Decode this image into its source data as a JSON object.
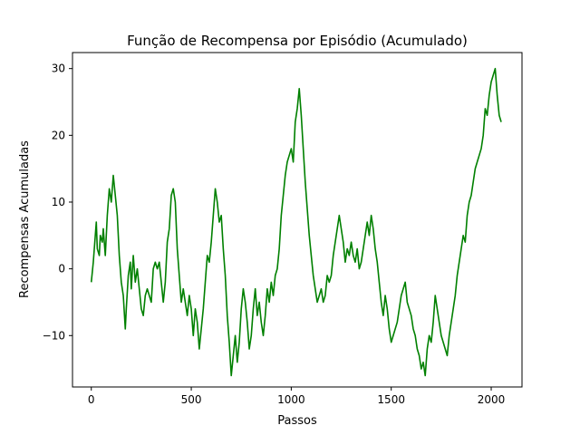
{
  "chart_data": {
    "type": "line",
    "title": "Função de Recompensa por Episódio (Acumulado)",
    "xlabel": "Passos",
    "ylabel": "Recompensas Acumuladas",
    "xlim": [
      -94,
      2154
    ],
    "ylim": [
      -17.7,
      32.4
    ],
    "xticks": [
      0,
      500,
      1000,
      1500,
      2000
    ],
    "yticks": [
      -10,
      0,
      10,
      20,
      30
    ],
    "xtick_labels": [
      "0",
      "500",
      "1000",
      "1500",
      "2000"
    ],
    "ytick_labels": [
      "−10",
      "0",
      "10",
      "20",
      "30"
    ],
    "grid": false,
    "legend": "none",
    "series": [
      {
        "color": "#008000",
        "points": [
          [
            0,
            -2
          ],
          [
            10,
            1
          ],
          [
            20,
            5
          ],
          [
            25,
            7
          ],
          [
            30,
            3
          ],
          [
            40,
            2
          ],
          [
            45,
            5
          ],
          [
            55,
            4
          ],
          [
            60,
            6
          ],
          [
            70,
            2
          ],
          [
            80,
            8
          ],
          [
            90,
            12
          ],
          [
            100,
            10
          ],
          [
            110,
            14
          ],
          [
            120,
            11
          ],
          [
            130,
            8
          ],
          [
            140,
            2
          ],
          [
            150,
            -2
          ],
          [
            160,
            -4
          ],
          [
            170,
            -9
          ],
          [
            175,
            -6
          ],
          [
            185,
            -1
          ],
          [
            195,
            1
          ],
          [
            200,
            -3
          ],
          [
            210,
            2
          ],
          [
            220,
            -2
          ],
          [
            230,
            0
          ],
          [
            240,
            -3
          ],
          [
            250,
            -6
          ],
          [
            260,
            -7
          ],
          [
            270,
            -4
          ],
          [
            280,
            -3
          ],
          [
            300,
            -5
          ],
          [
            310,
            0
          ],
          [
            320,
            1
          ],
          [
            330,
            0
          ],
          [
            340,
            1
          ],
          [
            360,
            -5
          ],
          [
            370,
            -2
          ],
          [
            380,
            4
          ],
          [
            390,
            6
          ],
          [
            400,
            11
          ],
          [
            410,
            12
          ],
          [
            420,
            10
          ],
          [
            430,
            3
          ],
          [
            440,
            -1
          ],
          [
            450,
            -5
          ],
          [
            460,
            -3
          ],
          [
            480,
            -7
          ],
          [
            490,
            -4
          ],
          [
            500,
            -6
          ],
          [
            510,
            -10
          ],
          [
            520,
            -6
          ],
          [
            530,
            -8
          ],
          [
            540,
            -12
          ],
          [
            550,
            -9
          ],
          [
            560,
            -6
          ],
          [
            570,
            -2
          ],
          [
            580,
            2
          ],
          [
            590,
            1
          ],
          [
            600,
            4
          ],
          [
            610,
            8
          ],
          [
            620,
            12
          ],
          [
            630,
            10
          ],
          [
            640,
            7
          ],
          [
            650,
            8
          ],
          [
            660,
            3
          ],
          [
            670,
            -1
          ],
          [
            680,
            -7
          ],
          [
            690,
            -11
          ],
          [
            700,
            -16
          ],
          [
            710,
            -13
          ],
          [
            720,
            -10
          ],
          [
            730,
            -14
          ],
          [
            740,
            -11
          ],
          [
            750,
            -6
          ],
          [
            760,
            -3
          ],
          [
            770,
            -5
          ],
          [
            780,
            -8
          ],
          [
            790,
            -12
          ],
          [
            800,
            -10
          ],
          [
            810,
            -6
          ],
          [
            820,
            -3
          ],
          [
            830,
            -7
          ],
          [
            840,
            -5
          ],
          [
            850,
            -8
          ],
          [
            860,
            -10
          ],
          [
            870,
            -7
          ],
          [
            880,
            -3
          ],
          [
            890,
            -5
          ],
          [
            900,
            -2
          ],
          [
            910,
            -4
          ],
          [
            920,
            -1
          ],
          [
            930,
            0
          ],
          [
            940,
            3
          ],
          [
            950,
            8
          ],
          [
            960,
            11
          ],
          [
            970,
            14
          ],
          [
            980,
            16
          ],
          [
            990,
            17
          ],
          [
            1000,
            18
          ],
          [
            1010,
            16
          ],
          [
            1020,
            22
          ],
          [
            1030,
            24
          ],
          [
            1040,
            27
          ],
          [
            1045,
            25
          ],
          [
            1050,
            23
          ],
          [
            1060,
            18
          ],
          [
            1070,
            13
          ],
          [
            1080,
            9
          ],
          [
            1090,
            5
          ],
          [
            1100,
            2
          ],
          [
            1110,
            -1
          ],
          [
            1120,
            -3
          ],
          [
            1130,
            -5
          ],
          [
            1140,
            -4
          ],
          [
            1150,
            -3
          ],
          [
            1160,
            -5
          ],
          [
            1170,
            -4
          ],
          [
            1180,
            -1
          ],
          [
            1190,
            -2
          ],
          [
            1200,
            -1
          ],
          [
            1210,
            2
          ],
          [
            1220,
            4
          ],
          [
            1230,
            6
          ],
          [
            1240,
            8
          ],
          [
            1250,
            6
          ],
          [
            1260,
            4
          ],
          [
            1270,
            1
          ],
          [
            1280,
            3
          ],
          [
            1290,
            2
          ],
          [
            1300,
            4
          ],
          [
            1310,
            2
          ],
          [
            1320,
            1
          ],
          [
            1330,
            3
          ],
          [
            1340,
            0
          ],
          [
            1350,
            1
          ],
          [
            1360,
            3
          ],
          [
            1370,
            5
          ],
          [
            1380,
            7
          ],
          [
            1390,
            5
          ],
          [
            1400,
            8
          ],
          [
            1410,
            6
          ],
          [
            1420,
            3
          ],
          [
            1430,
            1
          ],
          [
            1440,
            -2
          ],
          [
            1450,
            -5
          ],
          [
            1460,
            -7
          ],
          [
            1470,
            -4
          ],
          [
            1480,
            -6
          ],
          [
            1490,
            -9
          ],
          [
            1500,
            -11
          ],
          [
            1510,
            -10
          ],
          [
            1520,
            -9
          ],
          [
            1530,
            -8
          ],
          [
            1540,
            -6
          ],
          [
            1550,
            -4
          ],
          [
            1560,
            -3
          ],
          [
            1570,
            -2
          ],
          [
            1580,
            -5
          ],
          [
            1590,
            -6
          ],
          [
            1600,
            -7
          ],
          [
            1610,
            -9
          ],
          [
            1620,
            -10
          ],
          [
            1630,
            -12
          ],
          [
            1640,
            -13
          ],
          [
            1650,
            -15
          ],
          [
            1660,
            -14
          ],
          [
            1670,
            -16
          ],
          [
            1680,
            -12
          ],
          [
            1690,
            -10
          ],
          [
            1700,
            -11
          ],
          [
            1710,
            -8
          ],
          [
            1720,
            -4
          ],
          [
            1730,
            -6
          ],
          [
            1740,
            -8
          ],
          [
            1750,
            -10
          ],
          [
            1760,
            -11
          ],
          [
            1770,
            -12
          ],
          [
            1780,
            -13
          ],
          [
            1790,
            -10
          ],
          [
            1800,
            -8
          ],
          [
            1810,
            -6
          ],
          [
            1820,
            -4
          ],
          [
            1830,
            -1
          ],
          [
            1840,
            1
          ],
          [
            1850,
            3
          ],
          [
            1860,
            5
          ],
          [
            1870,
            4
          ],
          [
            1880,
            8
          ],
          [
            1890,
            10
          ],
          [
            1900,
            11
          ],
          [
            1910,
            13
          ],
          [
            1920,
            15
          ],
          [
            1930,
            16
          ],
          [
            1940,
            17
          ],
          [
            1950,
            18
          ],
          [
            1960,
            20
          ],
          [
            1970,
            24
          ],
          [
            1980,
            23
          ],
          [
            1990,
            26
          ],
          [
            2000,
            28
          ],
          [
            2010,
            29
          ],
          [
            2020,
            30
          ],
          [
            2030,
            26
          ],
          [
            2040,
            23
          ],
          [
            2050,
            22
          ]
        ]
      }
    ]
  }
}
